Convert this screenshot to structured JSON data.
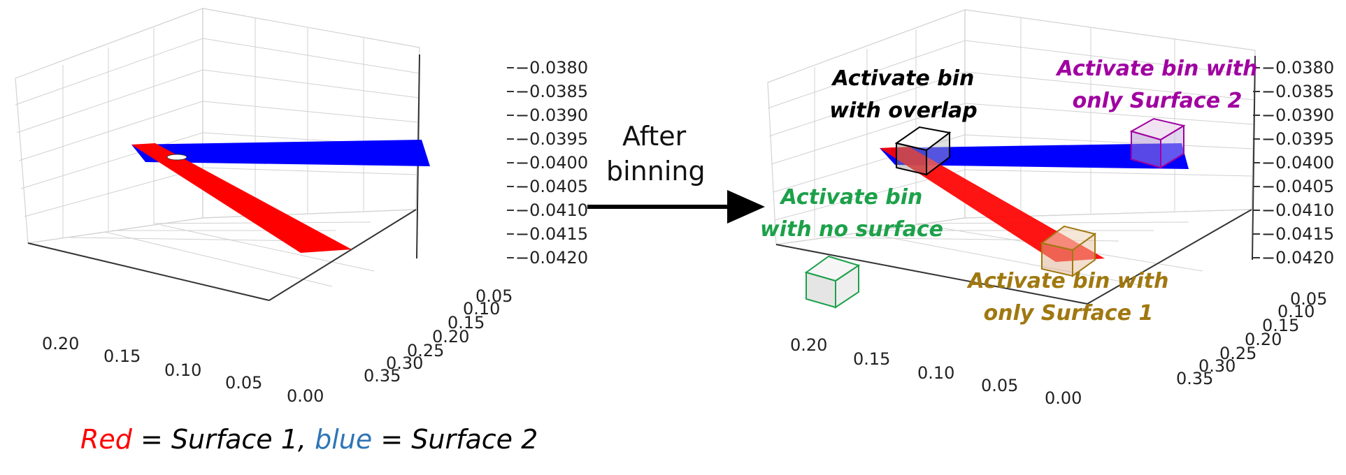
{
  "colors": {
    "surface_1": "#ff0000",
    "surface_2": "#0000ff",
    "annotation_overlap": "#000000",
    "annotation_surface_2": "#a000a0",
    "annotation_no_surface": "#1ca14a",
    "annotation_surface_1": "#a07810",
    "legend_blue": "#2e75b6"
  },
  "arrow": {
    "label_line1": "After",
    "label_line2": "binning"
  },
  "annotations": {
    "overlap": [
      "Activate bin",
      "with overlap"
    ],
    "surface_2": [
      "Activate bin with",
      "only Surface 2"
    ],
    "no_surface": [
      "Activate bin",
      "with no surface"
    ],
    "surface_1": [
      "Activate bin with",
      "only Surface 1"
    ]
  },
  "legend": {
    "red_word": "Red",
    "text1": " = Surface 1, ",
    "blue_word": "blue",
    "text2": " = Surface 2"
  },
  "chart_data": [
    {
      "type": "3d-surface-plot",
      "panel": "before binning",
      "x_ticks": [
        "0.20",
        "0.15",
        "0.10",
        "0.05",
        "0.00"
      ],
      "y_ticks": [
        "0.05",
        "0.10",
        "0.15",
        "0.20",
        "0.25",
        "0.30",
        "0.35"
      ],
      "z_ticks": [
        "0.0380",
        "0.0385",
        "0.0390",
        "0.0395",
        "0.0400",
        "0.0405",
        "0.0410",
        "0.0415",
        "0.0420"
      ],
      "z_tick_prefix": "−",
      "series": [
        {
          "name": "Surface 1",
          "color": "red"
        },
        {
          "name": "Surface 2",
          "color": "blue"
        }
      ]
    },
    {
      "type": "3d-surface-plot",
      "panel": "after binning",
      "x_ticks": [
        "0.20",
        "0.15",
        "0.10",
        "0.05",
        "0.00"
      ],
      "y_ticks": [
        "0.05",
        "0.10",
        "0.15",
        "0.20",
        "0.25",
        "0.30",
        "0.35"
      ],
      "z_ticks": [
        "0.0380",
        "0.0385",
        "0.0390",
        "0.0395",
        "0.0400",
        "0.0405",
        "0.0410",
        "0.0415",
        "0.0420"
      ],
      "z_tick_prefix": "−",
      "series": [
        {
          "name": "Surface 1",
          "color": "red"
        },
        {
          "name": "Surface 2",
          "color": "blue"
        }
      ]
    }
  ]
}
